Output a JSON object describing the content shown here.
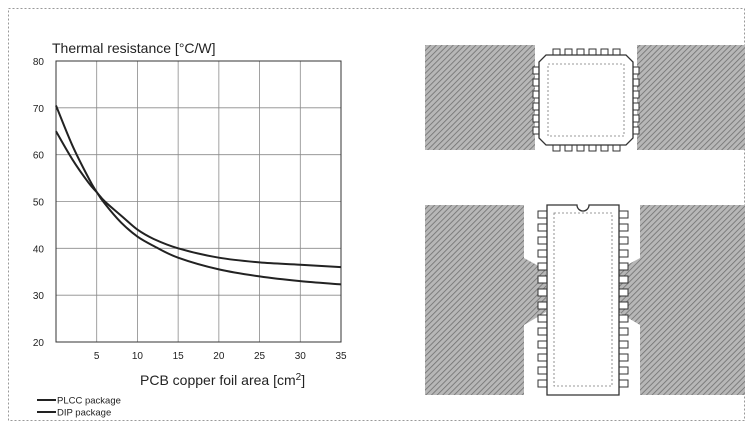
{
  "chart_data": {
    "type": "line",
    "title": "Thermal resistance  [°C/W]",
    "xlabel_main": "PCB copper foil area  [cm",
    "xlabel_sup": "2",
    "xlabel_end": "]",
    "xlim": [
      0,
      35
    ],
    "ylim": [
      20,
      80
    ],
    "x_ticks": [
      5,
      10,
      15,
      20,
      25,
      30,
      35
    ],
    "y_ticks": [
      20,
      30,
      40,
      50,
      60,
      70,
      80
    ],
    "grid": true,
    "legend_position": "bottom-left",
    "series": [
      {
        "name": "PLCC package",
        "x": [
          0,
          2,
          4,
          5,
          6,
          8,
          10,
          12,
          15,
          20,
          25,
          30,
          35
        ],
        "y": [
          70.5,
          62,
          55,
          52,
          49.5,
          45.5,
          42.5,
          40.5,
          38,
          35.5,
          34,
          33,
          32.3
        ]
      },
      {
        "name": "DIP package",
        "x": [
          0,
          2,
          4,
          5,
          6,
          8,
          10,
          12,
          15,
          20,
          25,
          30,
          35
        ],
        "y": [
          65,
          59,
          54,
          52,
          50,
          47,
          44,
          42,
          40,
          38,
          37,
          36.5,
          36
        ]
      }
    ]
  },
  "colors": {
    "line": "#222222",
    "grid": "#8a8a8a",
    "copper": "#9a9a9a",
    "outline": "#333333"
  },
  "figures": [
    {
      "name": "plcc-footprint-diagram"
    },
    {
      "name": "dip-footprint-diagram"
    }
  ]
}
